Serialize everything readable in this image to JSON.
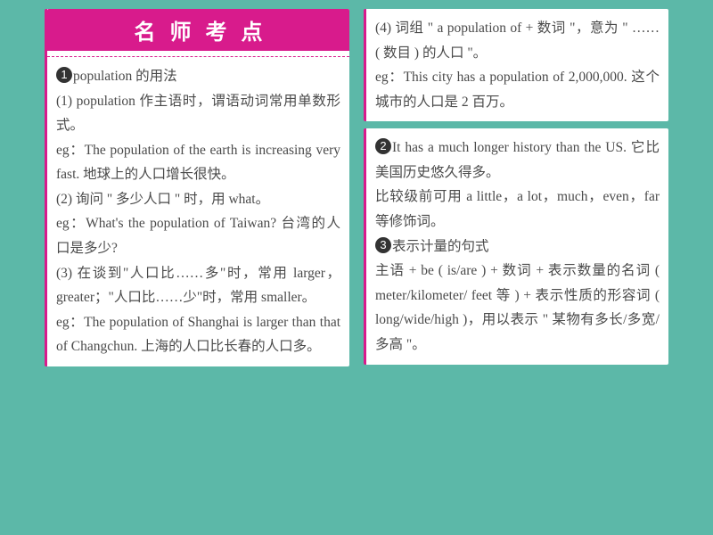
{
  "colors": {
    "bg": "#5cb8a8",
    "panel_bg": "#ffffff",
    "accent": "#d81b8c",
    "text": "#4a4a4a",
    "circle_bg": "#333333",
    "circle_text": "#ffffff"
  },
  "typography": {
    "header_fontsize": 24,
    "body_fontsize": 15.5,
    "line_height": 1.78
  },
  "header": {
    "title": "名师考点",
    "letter_spacing": 16
  },
  "circles": {
    "c1": "1",
    "c2": "2",
    "c3": "3"
  },
  "left": {
    "point1_title": "population 的用法",
    "p1_a": "(1) population 作主语时，谓语动词常用单数形式。",
    "p1_eg1": "eg：The population of the earth is increasing very fast. 地球上的人口增长很快。",
    "p1_b": "(2) 询问 \" 多少人口 \" 时，用 what。",
    "p1_eg2": "eg：What's the population of Tai­wan? 台湾的人口是多少?",
    "p1_c": "(3) 在谈到\"人口比……多\"时，常用 larger，greater；\"人口比……少\"时，常用 smaller。",
    "p1_eg3": "eg：The population of Shanghai is larger than that of Changchun. 上海的人口比长春的人口多。"
  },
  "right_top": {
    "p1_d": "(4) 词组 \" a population of + 数词 \"，意为 \" …… ( 数目 ) 的人口 \"。",
    "p1_eg4": "eg：This city has a population of 2,000,000. 这个城市的人口是 2 百万。"
  },
  "right_bottom": {
    "point2": "It has a much longer history than the US. 它比美国历史悠久得多。",
    "p2_note": "比较级前可用 a little，a lot，much，even，far 等修饰词。",
    "point3": "表示计量的句式",
    "p3_body": "主语 + be ( is/are ) + 数词 + 表示数量的名词 ( meter/kilometer/ feet 等 ) + 表示性质的形容词 ( long/wide/high )，用以表示 \" 某物有多长/多宽/多高 \"。"
  }
}
